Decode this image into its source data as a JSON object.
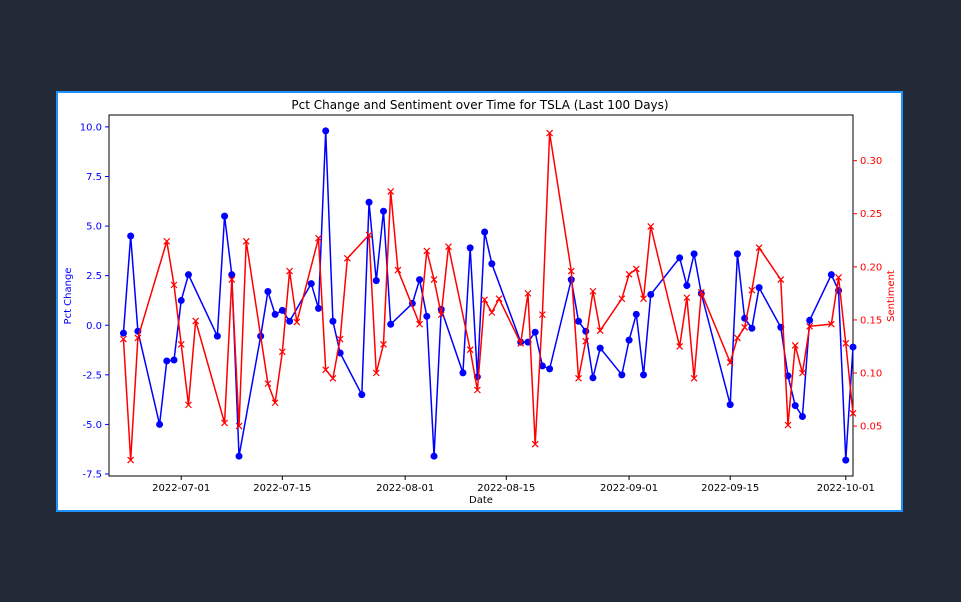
{
  "chart_data": {
    "type": "line",
    "title": "Pct Change and Sentiment over Time for TSLA (Last 100 Days)",
    "xlabel": "Date",
    "ylabel_left": "Pct Change",
    "ylabel_right": "Sentiment",
    "xlim": [
      "2022-06-21",
      "2022-10-02"
    ],
    "ylim_left": [
      -7.6,
      10.6
    ],
    "ylim_right": [
      0.003,
      0.343
    ],
    "xticks": [
      "2022-07-01",
      "2022-07-15",
      "2022-08-01",
      "2022-08-15",
      "2022-09-01",
      "2022-09-15",
      "2022-10-01"
    ],
    "yticks_left": [
      "10.0",
      "7.5",
      "5.0",
      "2.5",
      "0.0",
      "-2.5",
      "-5.0",
      "-7.5"
    ],
    "yticks_right": [
      "0.30",
      "0.25",
      "0.20",
      "0.15",
      "0.10",
      "0.05"
    ],
    "colors": {
      "pct": "#0000ff",
      "sentiment": "#ff0000",
      "left_axis": "#0000ff",
      "right_axis": "#ff0000",
      "border": "#1e90ff",
      "background": "#222a37"
    },
    "series": [
      {
        "axis": "left",
        "marker": "circle",
        "points": [
          [
            "2022-06-23",
            -0.4
          ],
          [
            "2022-06-24",
            4.5
          ],
          [
            "2022-06-25",
            -0.3
          ],
          [
            "2022-06-28",
            -5.0
          ],
          [
            "2022-06-29",
            -1.8
          ],
          [
            "2022-06-30",
            -1.75
          ],
          [
            "2022-07-01",
            1.25
          ],
          [
            "2022-07-02",
            2.55
          ],
          [
            "2022-07-06",
            -0.55
          ],
          [
            "2022-07-07",
            5.5
          ],
          [
            "2022-07-08",
            2.55
          ],
          [
            "2022-07-09",
            -6.6
          ],
          [
            "2022-07-12",
            -0.55
          ],
          [
            "2022-07-13",
            1.7
          ],
          [
            "2022-07-14",
            0.55
          ],
          [
            "2022-07-15",
            0.75
          ],
          [
            "2022-07-16",
            0.2
          ],
          [
            "2022-07-19",
            2.1
          ],
          [
            "2022-07-20",
            0.85
          ],
          [
            "2022-07-21",
            9.8
          ],
          [
            "2022-07-22",
            0.2
          ],
          [
            "2022-07-23",
            -1.4
          ],
          [
            "2022-07-26",
            -3.5
          ],
          [
            "2022-07-27",
            6.2
          ],
          [
            "2022-07-28",
            2.25
          ],
          [
            "2022-07-29",
            5.75
          ],
          [
            "2022-07-30",
            0.05
          ],
          [
            "2022-08-02",
            1.1
          ],
          [
            "2022-08-03",
            2.3
          ],
          [
            "2022-08-04",
            0.45
          ],
          [
            "2022-08-05",
            -6.6
          ],
          [
            "2022-08-06",
            0.8
          ],
          [
            "2022-08-09",
            -2.4
          ],
          [
            "2022-08-10",
            3.9
          ],
          [
            "2022-08-11",
            -2.6
          ],
          [
            "2022-08-12",
            4.7
          ],
          [
            "2022-08-13",
            3.1
          ],
          [
            "2022-08-17",
            -0.85
          ],
          [
            "2022-08-18",
            -0.85
          ],
          [
            "2022-08-19",
            -0.35
          ],
          [
            "2022-08-20",
            -2.05
          ],
          [
            "2022-08-21",
            -2.2
          ],
          [
            "2022-08-24",
            2.3
          ],
          [
            "2022-08-25",
            0.2
          ],
          [
            "2022-08-26",
            -0.3
          ],
          [
            "2022-08-27",
            -2.65
          ],
          [
            "2022-08-28",
            -1.15
          ],
          [
            "2022-08-31",
            -2.5
          ],
          [
            "2022-09-01",
            -0.75
          ],
          [
            "2022-09-02",
            0.55
          ],
          [
            "2022-09-03",
            -2.5
          ],
          [
            "2022-09-04",
            1.55
          ],
          [
            "2022-09-08",
            3.4
          ],
          [
            "2022-09-09",
            2.0
          ],
          [
            "2022-09-10",
            3.6
          ],
          [
            "2022-09-11",
            1.6
          ],
          [
            "2022-09-15",
            -4.0
          ],
          [
            "2022-09-16",
            3.6
          ],
          [
            "2022-09-17",
            0.35
          ],
          [
            "2022-09-18",
            -0.15
          ],
          [
            "2022-09-19",
            1.9
          ],
          [
            "2022-09-22",
            -0.1
          ],
          [
            "2022-09-23",
            -2.55
          ],
          [
            "2022-09-24",
            -4.05
          ],
          [
            "2022-09-25",
            -4.6
          ],
          [
            "2022-09-26",
            0.25
          ],
          [
            "2022-09-29",
            2.55
          ],
          [
            "2022-09-30",
            1.75
          ],
          [
            "2022-10-01",
            -6.8
          ],
          [
            "2022-10-02",
            -1.1
          ]
        ]
      },
      {
        "axis": "right",
        "marker": "x",
        "points": [
          [
            "2022-06-23",
            0.132
          ],
          [
            "2022-06-24",
            0.018
          ],
          [
            "2022-06-25",
            0.133
          ],
          [
            "2022-06-29",
            0.224
          ],
          [
            "2022-06-30",
            0.183
          ],
          [
            "2022-07-01",
            0.127
          ],
          [
            "2022-07-02",
            0.07
          ],
          [
            "2022-07-03",
            0.149
          ],
          [
            "2022-07-07",
            0.053
          ],
          [
            "2022-07-08",
            0.188
          ],
          [
            "2022-07-09",
            0.05
          ],
          [
            "2022-07-10",
            0.224
          ],
          [
            "2022-07-13",
            0.09
          ],
          [
            "2022-07-14",
            0.072
          ],
          [
            "2022-07-15",
            0.12
          ],
          [
            "2022-07-16",
            0.196
          ],
          [
            "2022-07-17",
            0.148
          ],
          [
            "2022-07-20",
            0.227
          ],
          [
            "2022-07-21",
            0.103
          ],
          [
            "2022-07-22",
            0.095
          ],
          [
            "2022-07-23",
            0.132
          ],
          [
            "2022-07-24",
            0.208
          ],
          [
            "2022-07-27",
            0.23
          ],
          [
            "2022-07-28",
            0.1
          ],
          [
            "2022-07-29",
            0.127
          ],
          [
            "2022-07-30",
            0.271
          ],
          [
            "2022-07-31",
            0.197
          ],
          [
            "2022-08-03",
            0.146
          ],
          [
            "2022-08-04",
            0.215
          ],
          [
            "2022-08-05",
            0.188
          ],
          [
            "2022-08-06",
            0.155
          ],
          [
            "2022-08-07",
            0.219
          ],
          [
            "2022-08-10",
            0.122
          ],
          [
            "2022-08-11",
            0.084
          ],
          [
            "2022-08-12",
            0.169
          ],
          [
            "2022-08-13",
            0.157
          ],
          [
            "2022-08-14",
            0.17
          ],
          [
            "2022-08-17",
            0.128
          ],
          [
            "2022-08-18",
            0.175
          ],
          [
            "2022-08-19",
            0.033
          ],
          [
            "2022-08-20",
            0.155
          ],
          [
            "2022-08-21",
            0.326
          ],
          [
            "2022-08-24",
            0.196
          ],
          [
            "2022-08-25",
            0.095
          ],
          [
            "2022-08-26",
            0.13
          ],
          [
            "2022-08-27",
            0.177
          ],
          [
            "2022-08-28",
            0.14
          ],
          [
            "2022-08-31",
            0.17
          ],
          [
            "2022-09-01",
            0.193
          ],
          [
            "2022-09-02",
            0.198
          ],
          [
            "2022-09-03",
            0.17
          ],
          [
            "2022-09-04",
            0.238
          ],
          [
            "2022-09-08",
            0.125
          ],
          [
            "2022-09-09",
            0.171
          ],
          [
            "2022-09-10",
            0.095
          ],
          [
            "2022-09-11",
            0.176
          ],
          [
            "2022-09-15",
            0.11
          ],
          [
            "2022-09-16",
            0.133
          ],
          [
            "2022-09-17",
            0.143
          ],
          [
            "2022-09-18",
            0.178
          ],
          [
            "2022-09-19",
            0.218
          ],
          [
            "2022-09-22",
            0.188
          ],
          [
            "2022-09-23",
            0.051
          ],
          [
            "2022-09-24",
            0.126
          ],
          [
            "2022-09-25",
            0.1
          ],
          [
            "2022-09-26",
            0.144
          ],
          [
            "2022-09-29",
            0.146
          ],
          [
            "2022-09-30",
            0.19
          ],
          [
            "2022-10-01",
            0.128
          ],
          [
            "2022-10-02",
            0.062
          ]
        ]
      }
    ]
  }
}
